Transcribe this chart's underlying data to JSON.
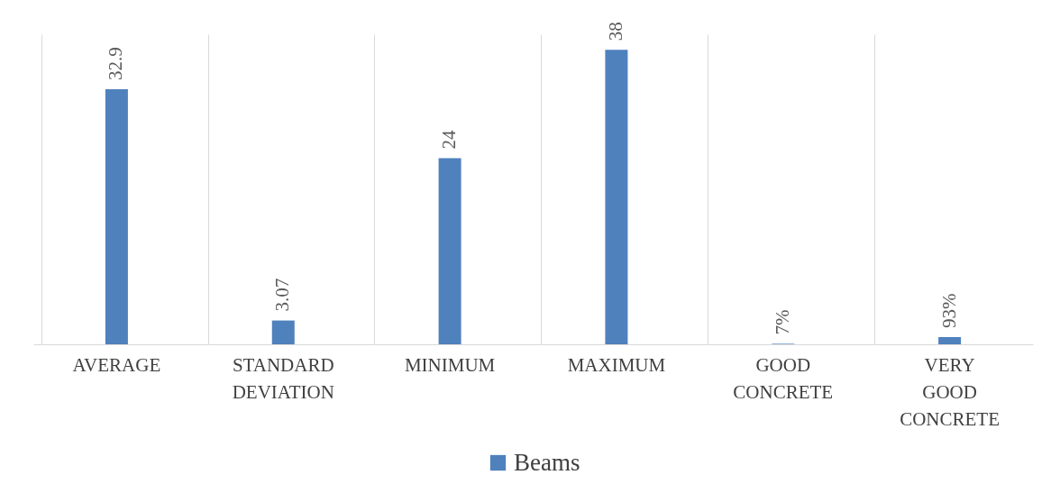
{
  "chart_data": {
    "type": "bar",
    "categories": [
      "AVERAGE",
      "STANDARD DEVIATION",
      "MINIMUM",
      "MAXIMUM",
      "GOOD CONCRETE",
      "VERY GOOD CONCRETE"
    ],
    "series": [
      {
        "name": "Beams",
        "color": "#4f81bd",
        "values": [
          32.9,
          3.07,
          24,
          38,
          0.07,
          0.93
        ],
        "value_labels": [
          "32.9",
          "3.07",
          "24",
          "38",
          "7%",
          "93%"
        ]
      }
    ],
    "grid": "x",
    "legend": "bottom"
  }
}
